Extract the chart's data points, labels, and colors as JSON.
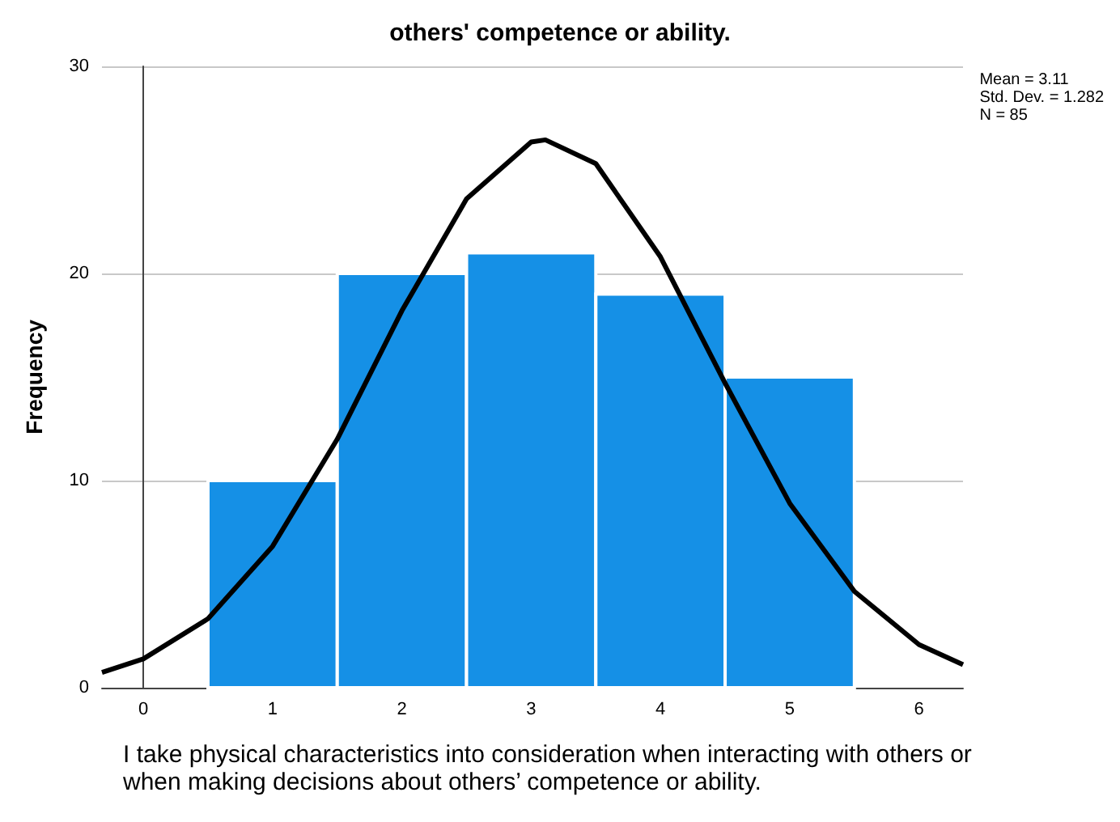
{
  "chart_data": {
    "type": "histogram",
    "title": "others' competence or ability.",
    "xlabel": "I take physical characteristics into consideration when interacting with others or when making decisions about others’ competence or ability.",
    "ylabel": "Frequency",
    "annotations": [
      "Mean = 3.11\nStd. Dev. = 1.282\nN = 85"
    ],
    "bins": [
      0.5,
      1.5,
      2.5,
      3.5,
      4.5,
      5.5
    ],
    "values": [
      10,
      20,
      21,
      19,
      15
    ],
    "color": "#1590e6",
    "series": [
      {
        "type": "line",
        "color": "#000000",
        "x": [
          -0.32,
          0,
          0.5,
          1,
          1.5,
          2,
          2.5,
          3,
          3.11,
          3.5,
          4,
          4.5,
          5,
          5.5,
          6,
          6.34
        ],
        "values": [
          0.74,
          1.39,
          3.33,
          6.83,
          12.0,
          18.2,
          23.6,
          26.35,
          26.45,
          25.3,
          20.8,
          14.7,
          8.9,
          4.65,
          2.08,
          1.11
        ]
      }
    ],
    "xlim": [
      -0.32,
      6.34
    ],
    "xticks": [
      0,
      1,
      2,
      3,
      4,
      5,
      6
    ],
    "ylim": [
      0,
      30
    ],
    "yticks": [
      0,
      10,
      20,
      30
    ],
    "grid": "y",
    "marker": "none",
    "line_style": "solid"
  }
}
